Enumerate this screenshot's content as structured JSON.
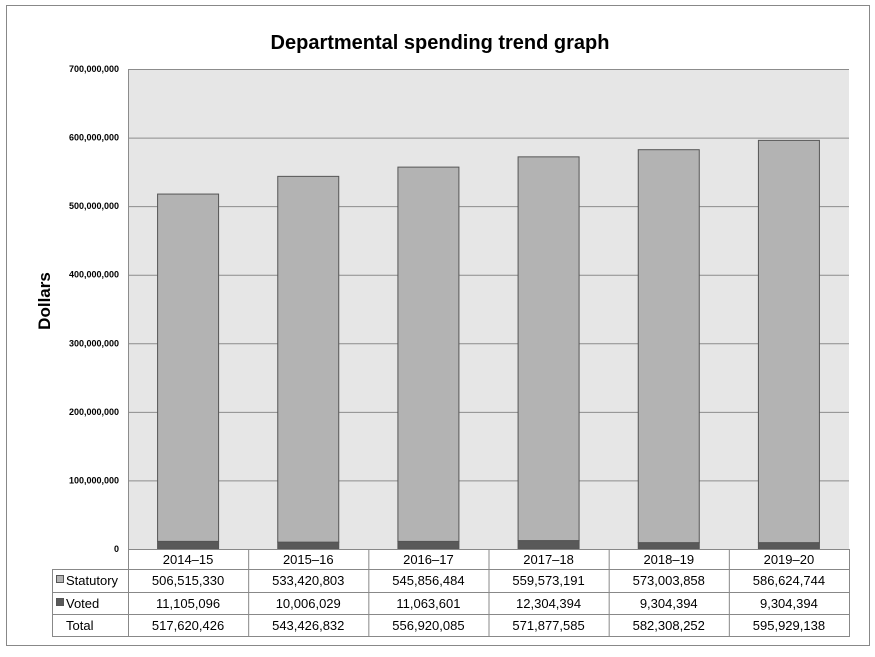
{
  "chart_data": {
    "type": "bar",
    "stacked": true,
    "title": "Departmental spending trend graph",
    "xlabel": "",
    "ylabel": "Dollars",
    "ylim": [
      0,
      700000000
    ],
    "yticks": [
      0,
      100000000,
      200000000,
      300000000,
      400000000,
      500000000,
      600000000,
      700000000
    ],
    "ytick_labels": [
      "0",
      "100,000,000",
      "200,000,000",
      "300,000,000",
      "400,000,000",
      "500,000,000",
      "600,000,000",
      "700,000,000"
    ],
    "grid": true,
    "legend_placement": "data-table",
    "categories": [
      "2014–15",
      "2015–16",
      "2016–17",
      "2017–18",
      "2018–19",
      "2019–20"
    ],
    "series": [
      {
        "name": "Statutory",
        "color": "#b3b3b3",
        "values": [
          506515330,
          533420803,
          545856484,
          559573191,
          573003858,
          586624744
        ],
        "labels": [
          "506,515,330",
          "533,420,803",
          "545,856,484",
          "559,573,191",
          "573,003,858",
          "586,624,744"
        ]
      },
      {
        "name": "Voted",
        "color": "#595959",
        "values": [
          11105096,
          10006029,
          11063601,
          12304394,
          9304394,
          9304394
        ],
        "labels": [
          "11,105,096",
          "10,006,029",
          "11,063,601",
          "12,304,394",
          "9,304,394",
          "9,304,394"
        ]
      }
    ],
    "totals": {
      "name": "Total",
      "values": [
        517620426,
        543426832,
        556920085,
        571877585,
        582308252,
        595929138
      ],
      "labels": [
        "517,620,426",
        "543,426,832",
        "556,920,085",
        "571,877,585",
        "582,308,252",
        "595,929,138"
      ]
    }
  }
}
